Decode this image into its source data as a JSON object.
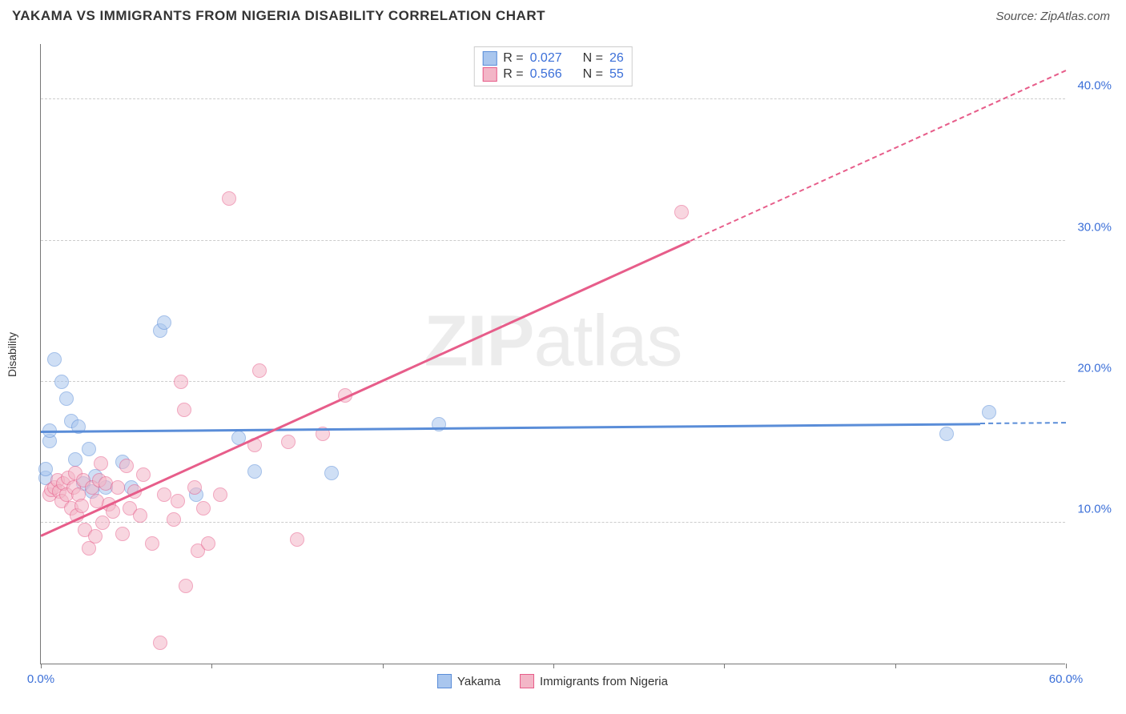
{
  "title": "YAKAMA VS IMMIGRANTS FROM NIGERIA DISABILITY CORRELATION CHART",
  "source": "Source: ZipAtlas.com",
  "ylabel": "Disability",
  "watermark_bold": "ZIP",
  "watermark_rest": "atlas",
  "chart": {
    "type": "scatter",
    "xlim": [
      0,
      60
    ],
    "ylim": [
      0,
      44
    ],
    "x_ticks": [
      0,
      10,
      20,
      30,
      40,
      50,
      60
    ],
    "x_tick_labels": {
      "0": "0.0%",
      "60": "60.0%"
    },
    "y_gridlines": [
      10,
      20,
      30,
      40
    ],
    "y_tick_labels": {
      "10": "10.0%",
      "20": "20.0%",
      "30": "30.0%",
      "40": "40.0%"
    },
    "background_color": "#ffffff",
    "grid_color": "#cccccc",
    "axis_color": "#777777",
    "tick_label_color": "#3b6fd8",
    "marker_radius": 9,
    "marker_stroke_width": 1.5,
    "series": [
      {
        "name": "Yakama",
        "fill": "#a9c6ee",
        "stroke": "#5a8dd8",
        "fill_opacity": 0.55,
        "r_value": "0.027",
        "n_value": "26",
        "trend": {
          "x1": 0,
          "y1": 16.4,
          "x2": 60,
          "y2": 17.0,
          "solid_until_x": 55
        },
        "points": [
          [
            0.3,
            13.2
          ],
          [
            0.3,
            13.8
          ],
          [
            0.5,
            15.8
          ],
          [
            0.5,
            16.5
          ],
          [
            0.8,
            21.6
          ],
          [
            1.2,
            20.0
          ],
          [
            1.5,
            18.8
          ],
          [
            1.8,
            17.2
          ],
          [
            2.0,
            14.5
          ],
          [
            2.2,
            16.8
          ],
          [
            2.5,
            12.8
          ],
          [
            3.0,
            12.2
          ],
          [
            3.2,
            13.3
          ],
          [
            3.8,
            12.5
          ],
          [
            4.8,
            14.3
          ],
          [
            5.3,
            12.5
          ],
          [
            7.0,
            23.6
          ],
          [
            7.2,
            24.2
          ],
          [
            9.1,
            12.0
          ],
          [
            11.6,
            16.0
          ],
          [
            12.5,
            13.6
          ],
          [
            17.0,
            13.5
          ],
          [
            23.3,
            17.0
          ],
          [
            53.0,
            16.3
          ],
          [
            55.5,
            17.8
          ],
          [
            2.8,
            15.2
          ]
        ]
      },
      {
        "name": "Immigrants from Nigeria",
        "fill": "#f3b6c7",
        "stroke": "#e75d8a",
        "fill_opacity": 0.55,
        "r_value": "0.566",
        "n_value": "55",
        "trend": {
          "x1": 0,
          "y1": 9.0,
          "x2": 60,
          "y2": 42.0,
          "solid_until_x": 38
        },
        "points": [
          [
            0.5,
            12.0
          ],
          [
            0.6,
            12.3
          ],
          [
            0.8,
            12.5
          ],
          [
            1.0,
            13.0
          ],
          [
            1.1,
            12.2
          ],
          [
            1.2,
            11.5
          ],
          [
            1.3,
            12.8
          ],
          [
            1.5,
            12.0
          ],
          [
            1.6,
            13.2
          ],
          [
            1.8,
            11.0
          ],
          [
            1.9,
            12.5
          ],
          [
            2.0,
            13.5
          ],
          [
            2.1,
            10.5
          ],
          [
            2.2,
            12.0
          ],
          [
            2.4,
            11.2
          ],
          [
            2.5,
            13.0
          ],
          [
            2.6,
            9.5
          ],
          [
            2.8,
            8.2
          ],
          [
            3.0,
            12.5
          ],
          [
            3.2,
            9.0
          ],
          [
            3.3,
            11.5
          ],
          [
            3.4,
            13.0
          ],
          [
            3.6,
            10.0
          ],
          [
            3.8,
            12.8
          ],
          [
            4.0,
            11.3
          ],
          [
            4.2,
            10.8
          ],
          [
            4.5,
            12.5
          ],
          [
            4.8,
            9.2
          ],
          [
            5.0,
            14.0
          ],
          [
            5.2,
            11.0
          ],
          [
            5.5,
            12.2
          ],
          [
            5.8,
            10.5
          ],
          [
            6.0,
            13.4
          ],
          [
            6.5,
            8.5
          ],
          [
            7.0,
            1.5
          ],
          [
            7.2,
            12.0
          ],
          [
            7.8,
            10.2
          ],
          [
            8.0,
            11.5
          ],
          [
            8.2,
            20.0
          ],
          [
            8.4,
            18.0
          ],
          [
            8.5,
            5.5
          ],
          [
            9.0,
            12.5
          ],
          [
            9.2,
            8.0
          ],
          [
            9.5,
            11.0
          ],
          [
            9.8,
            8.5
          ],
          [
            10.5,
            12.0
          ],
          [
            11.0,
            33.0
          ],
          [
            12.5,
            15.5
          ],
          [
            12.8,
            20.8
          ],
          [
            14.5,
            15.7
          ],
          [
            15.0,
            8.8
          ],
          [
            16.5,
            16.3
          ],
          [
            17.8,
            19.0
          ],
          [
            37.5,
            32.0
          ],
          [
            3.5,
            14.2
          ]
        ]
      }
    ]
  },
  "legend_top": {
    "r_label": "R =",
    "n_label": "N ="
  },
  "legend_bottom": [
    {
      "label": "Yakama",
      "fill": "#a9c6ee",
      "stroke": "#5a8dd8"
    },
    {
      "label": "Immigrants from Nigeria",
      "fill": "#f3b6c7",
      "stroke": "#e75d8a"
    }
  ]
}
